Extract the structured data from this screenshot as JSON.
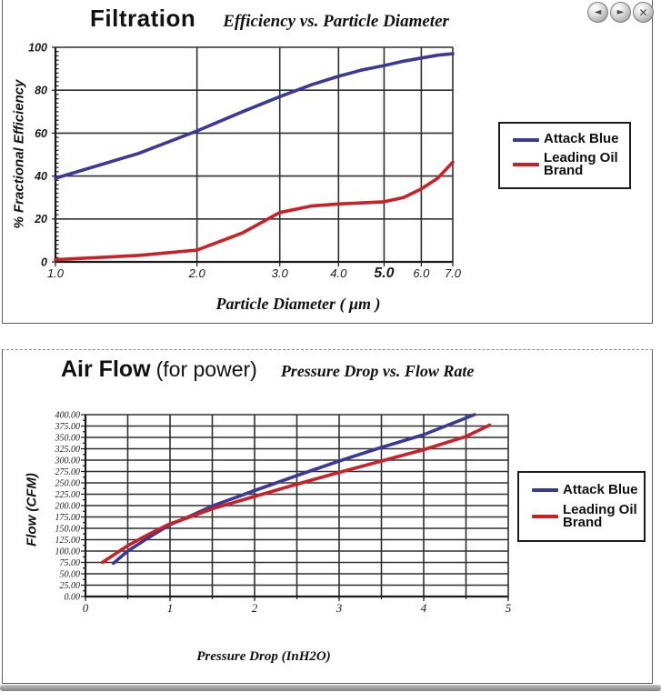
{
  "nav": {
    "buttons": [
      {
        "id": "back",
        "glyph": "◄"
      },
      {
        "id": "forward",
        "glyph": "►"
      },
      {
        "id": "close",
        "glyph": "✕"
      }
    ]
  },
  "colors": {
    "attack_blue": "#3a3a96",
    "leading_oil_red": "#c92127",
    "grid": "#2f2f2f",
    "axis": "#1a1a1a",
    "text": "#1a1a1a",
    "panel_border": "#5f5f5f"
  },
  "chart_data": [
    {
      "type": "line",
      "title": "Filtration",
      "subtitle": "Efficiency vs. Particle Diameter",
      "xlabel": "Particle Diameter ( μm )",
      "ylabel": "% Fractional Efficiency",
      "x_scale": "log",
      "xlim": [
        1,
        7
      ],
      "ylim": [
        0,
        100
      ],
      "y_tick_step": 20,
      "x_ticks": [
        1,
        2,
        3,
        4,
        5,
        6,
        7
      ],
      "x_tick_labels": [
        "1.0",
        "2.0",
        "3.0",
        "4.0",
        "5.0",
        "6.0",
        "7.0"
      ],
      "bold_x_tick": "5.0",
      "grid": true,
      "legend_position": "right",
      "series": [
        {
          "name": "Attack Blue",
          "color": "#3a3a96",
          "x": [
            1,
            1.5,
            2,
            2.5,
            3,
            3.5,
            4,
            4.5,
            5,
            5.5,
            6,
            6.5,
            7
          ],
          "y": [
            39,
            50.5,
            61,
            70,
            77,
            82.5,
            86.5,
            89.5,
            91.5,
            93.5,
            95,
            96.3,
            97
          ]
        },
        {
          "name": "Leading Oil Brand",
          "color": "#c92127",
          "x": [
            1,
            1.5,
            2,
            2.5,
            3,
            3.5,
            4,
            4.5,
            5,
            5.5,
            6,
            6.5,
            7
          ],
          "y": [
            1,
            3,
            5.5,
            13.5,
            23,
            26,
            27,
            27.5,
            28,
            30,
            34,
            39,
            46.5
          ]
        }
      ]
    },
    {
      "type": "line",
      "title": "Air Flow",
      "title_suffix": "(for power)",
      "subtitle": "Pressure Drop vs. Flow Rate",
      "xlabel": "Pressure Drop (InH2O)",
      "ylabel": "Flow (CFM)",
      "x_scale": "linear",
      "xlim": [
        0,
        5
      ],
      "ylim": [
        0,
        400
      ],
      "y_tick_step": 25,
      "x_grid_step": 0.5,
      "x_ticks": [
        0,
        1,
        2,
        3,
        4,
        5
      ],
      "x_tick_labels": [
        "0",
        "1",
        "2",
        "3",
        "4",
        "5"
      ],
      "grid": true,
      "legend_position": "right",
      "series": [
        {
          "name": "Attack Blue",
          "color": "#3a3a96",
          "x": [
            0.33,
            0.5,
            0.75,
            1,
            1.25,
            1.5,
            2,
            2.5,
            3,
            3.5,
            4,
            4.6
          ],
          "y": [
            73,
            100,
            130,
            158,
            178,
            199,
            233,
            266,
            298,
            328,
            356,
            400
          ]
        },
        {
          "name": "Leading Oil Brand",
          "color": "#c92127",
          "x": [
            0.2,
            0.5,
            0.75,
            1,
            1.1,
            1.5,
            2,
            2.5,
            3,
            3.5,
            4,
            4.5,
            4.78
          ],
          "y": [
            75,
            112,
            137,
            160,
            166,
            193,
            220,
            247,
            273,
            298,
            323,
            352,
            377
          ]
        }
      ]
    }
  ]
}
